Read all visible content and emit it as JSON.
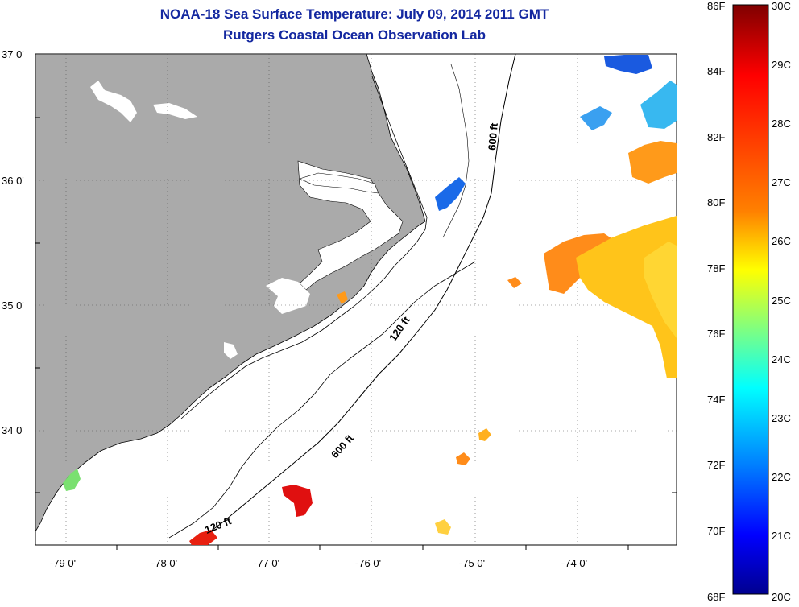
{
  "title": {
    "line1": "NOAA-18 Sea Surface Temperature:  July 09, 2014 2011 GMT",
    "line2": "Rutgers Coastal Ocean Observation Lab"
  },
  "latitude_labels": [
    "37 0'",
    "36 0'",
    "35 0'",
    "34 0'"
  ],
  "longitude_labels": [
    "-79 0'",
    "-78 0'",
    "-77 0'",
    "-76 0'",
    "-75 0'",
    "-74 0'"
  ],
  "bathymetry_labels": {
    "contour_600_upper": "600 ft",
    "contour_120_mid": "120 ft",
    "contour_600_lower": "600 ft",
    "contour_120_lower": "120 ft"
  },
  "colorbar": {
    "fahrenheit": [
      "86F",
      "84F",
      "82F",
      "80F",
      "78F",
      "76F",
      "74F",
      "72F",
      "70F",
      "68F"
    ],
    "celsius": [
      "30C",
      "29C",
      "28C",
      "27C",
      "26C",
      "25C",
      "24C",
      "23C",
      "22C",
      "21C",
      "20C"
    ],
    "colors": [
      "#7f0000",
      "#ff0000",
      "#ff8000",
      "#ffff00",
      "#80ff80",
      "#00ffff",
      "#0080ff",
      "#0000ff",
      "#00008f"
    ]
  },
  "colors": {
    "land": "#aaaaaa",
    "title": "#1428a0"
  }
}
